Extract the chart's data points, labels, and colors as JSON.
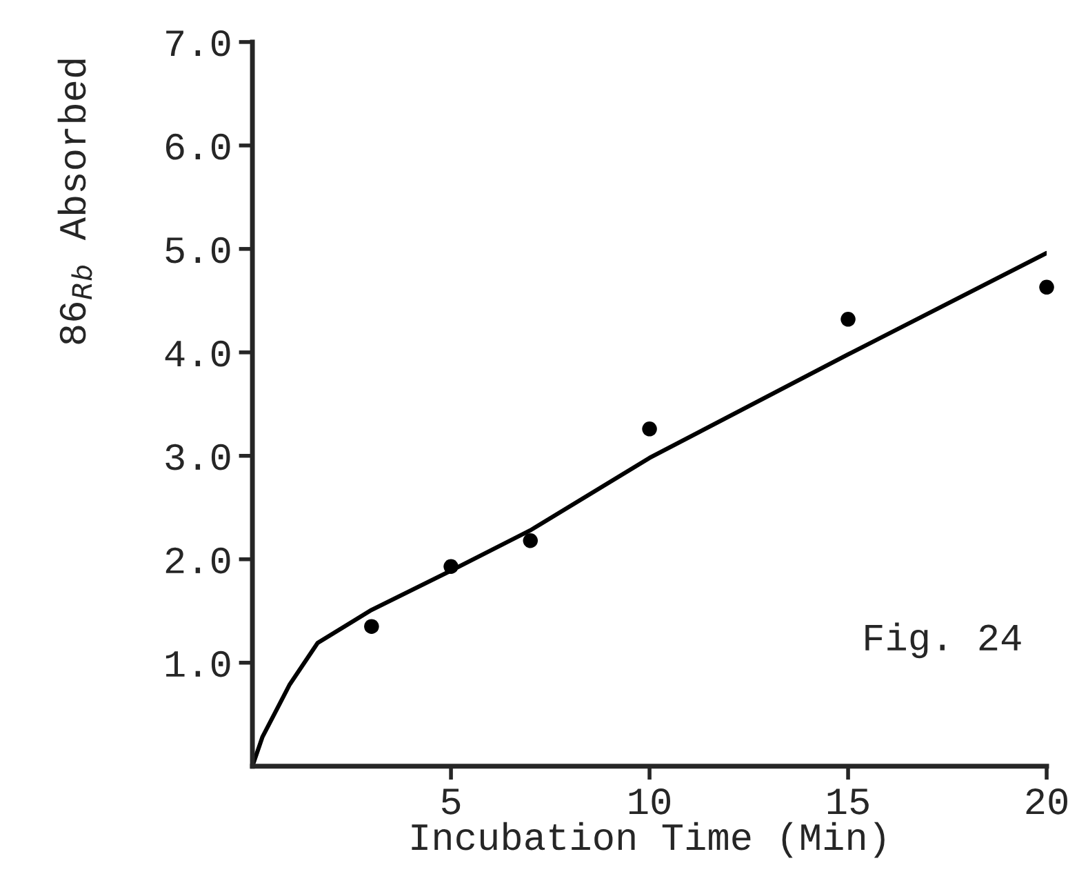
{
  "chart_data": {
    "type": "scatter",
    "xlabel": "Incubation Time (Min)",
    "ylabel": "86$_{Rb}$ Absorbed",
    "xlim": [
      0,
      20
    ],
    "ylim": [
      0,
      7
    ],
    "xticks": [
      5,
      10,
      15,
      20
    ],
    "yticks": [
      {
        "value": 1,
        "label": "1.0"
      },
      {
        "value": 2,
        "label": "2.0"
      },
      {
        "value": 3,
        "label": "3.0"
      },
      {
        "value": 4,
        "label": "4.0"
      },
      {
        "value": 5,
        "label": "5.0"
      },
      {
        "value": 6,
        "label": "6.0"
      },
      {
        "value": 7,
        "label": "7.0"
      }
    ],
    "grid": false,
    "marker": "circle",
    "annotations": [
      "Fig. 24"
    ],
    "series": [
      {
        "color": "#000000",
        "x": [
          3,
          5,
          7,
          10,
          15,
          20
        ],
        "values": [
          1.35,
          1.93,
          2.18,
          3.26,
          4.32,
          4.63
        ]
      },
      {
        "type": "line",
        "color": "#000000",
        "marker": "none",
        "line_style": "solid",
        "x": [
          0,
          0.25,
          0.94,
          1.64,
          3,
          5,
          7,
          10,
          15,
          20
        ],
        "values": [
          0,
          0.28,
          0.79,
          1.19,
          1.51,
          1.89,
          2.28,
          2.98,
          3.98,
          4.96
        ]
      }
    ]
  }
}
